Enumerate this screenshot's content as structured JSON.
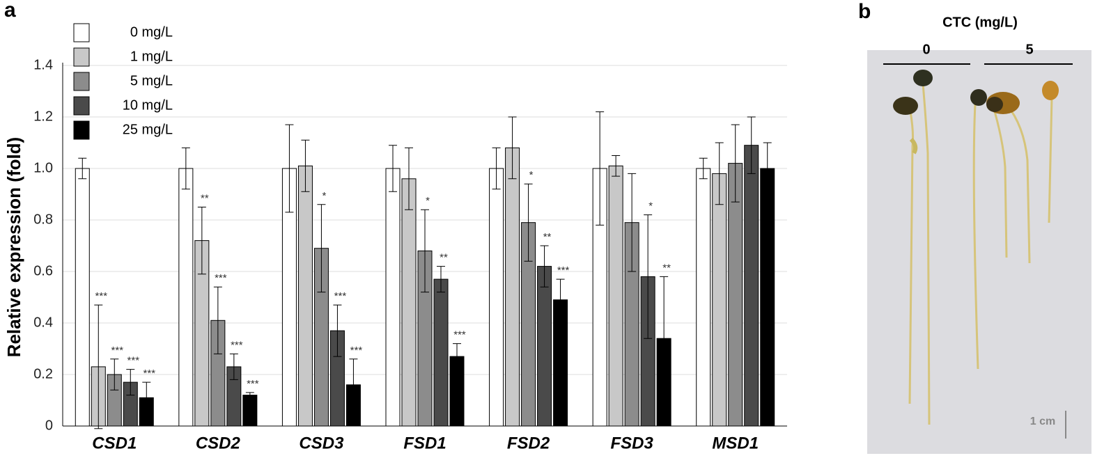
{
  "chart_data": {
    "type": "bar",
    "panel_label": "a",
    "y_label": "Relative expression (fold)",
    "categories": [
      "CSD1",
      "CSD2",
      "CSD3",
      "FSD1",
      "FSD2",
      "FSD3",
      "MSD1"
    ],
    "series": [
      {
        "name": "0 mg/L",
        "color": "#ffffff",
        "values": [
          1.0,
          1.0,
          1.0,
          1.0,
          1.0,
          1.0,
          1.0
        ],
        "errors": [
          0.04,
          0.08,
          0.17,
          0.09,
          0.08,
          0.22,
          0.04
        ],
        "sig": [
          null,
          null,
          null,
          null,
          null,
          null,
          null
        ]
      },
      {
        "name": "1 mg/L",
        "color": "#c8c8c8",
        "values": [
          0.23,
          0.72,
          1.01,
          0.96,
          1.08,
          1.01,
          0.98
        ],
        "errors": [
          0.24,
          0.13,
          0.1,
          0.12,
          0.12,
          0.04,
          0.12
        ],
        "sig": [
          "***",
          "**",
          null,
          null,
          null,
          null,
          null
        ]
      },
      {
        "name": "5 mg/L",
        "color": "#8c8c8c",
        "values": [
          0.2,
          0.41,
          0.69,
          0.68,
          0.79,
          0.79,
          1.02
        ],
        "errors": [
          0.06,
          0.13,
          0.17,
          0.16,
          0.15,
          0.19,
          0.15
        ],
        "sig": [
          "***",
          "***",
          "*",
          "*",
          "*",
          null,
          null
        ]
      },
      {
        "name": "10 mg/L",
        "color": "#4a4a4a",
        "values": [
          0.17,
          0.23,
          0.37,
          0.57,
          0.62,
          0.58,
          1.09
        ],
        "errors": [
          0.05,
          0.05,
          0.1,
          0.05,
          0.08,
          0.24,
          0.11
        ],
        "sig": [
          "***",
          "***",
          "***",
          "**",
          "**",
          "*",
          null
        ]
      },
      {
        "name": "25 mg/L",
        "color": "#000000",
        "values": [
          0.11,
          0.12,
          0.16,
          0.27,
          0.49,
          0.34,
          1.0
        ],
        "errors": [
          0.06,
          0.01,
          0.1,
          0.05,
          0.08,
          0.24,
          0.1
        ],
        "sig": [
          "***",
          "***",
          "***",
          "***",
          "***",
          "**",
          null
        ]
      }
    ],
    "ylim": [
      0,
      1.4
    ],
    "yticks": [
      0,
      0.2,
      0.4,
      0.6,
      0.8,
      {
        "value": 1,
        "label": "1.0"
      },
      1.2,
      1.4
    ],
    "grid": true
  },
  "photo_panel": {
    "panel_label": "b",
    "title": "CTC (mg/L)",
    "groups": [
      "0",
      "5"
    ],
    "scale_label": "1 cm"
  }
}
